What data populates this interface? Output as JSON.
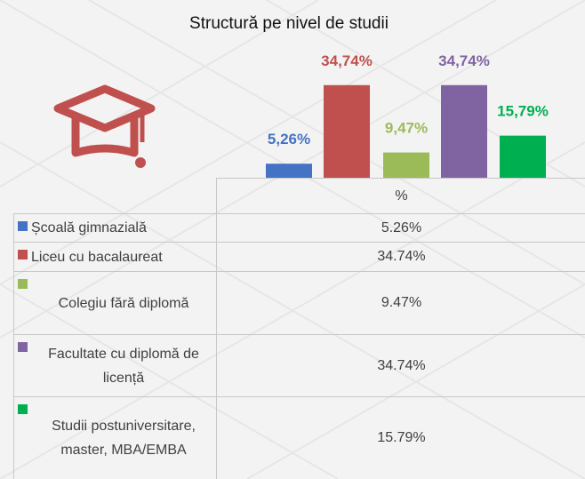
{
  "chart_data": {
    "type": "bar",
    "title": "Structură pe nivel de studii",
    "categories": [
      "Școală gimnazială",
      "Liceu cu bacalaureat",
      "Colegiu fără diplomă",
      "Facultate cu diplomă de licență",
      "Studii postuniversitare, master, MBA/EMBA"
    ],
    "values": [
      5.26,
      34.74,
      9.47,
      34.74,
      15.79
    ],
    "value_labels": [
      "5,26%",
      "34,74%",
      "9,47%",
      "34,74%",
      "15,79%"
    ],
    "colors": [
      "#4472c4",
      "#c0504d",
      "#9bbb59",
      "#8064a2",
      "#00b050"
    ],
    "table_header": "%",
    "table_labels": [
      "5.26%",
      "34.74%",
      "9.47%",
      "34.74%",
      "15.79%"
    ]
  }
}
